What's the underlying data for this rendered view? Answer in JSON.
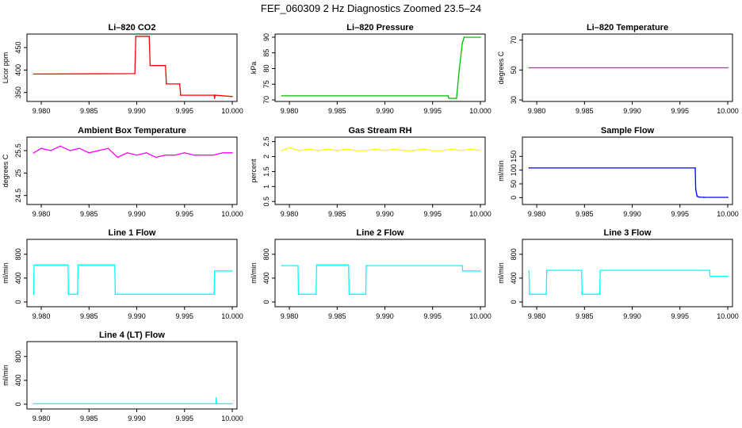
{
  "title": "FEF_060309  2 Hz Diagnostics Zoomed 23.5–24",
  "x_tick_labels": [
    "9.980",
    "9.985",
    "9.990",
    "9.995",
    "10.000"
  ],
  "chart_data": [
    {
      "type": "line",
      "title": "Li–820 CO2",
      "ylabel": "Licor ppm",
      "color": "#ff0000",
      "xlim": [
        9.9785,
        10.0005
      ],
      "ylim": [
        330,
        480
      ],
      "yticks": [
        350,
        400,
        450
      ],
      "x": [
        9.9792,
        9.9898,
        9.9899,
        9.9913,
        9.9914,
        9.993,
        9.9931,
        9.9945,
        9.9946,
        9.9981,
        9.99815,
        9.9982,
        10.0
      ],
      "values": [
        391,
        392,
        475,
        475,
        410,
        410,
        369,
        369,
        344,
        344,
        337,
        344,
        341
      ]
    },
    {
      "type": "line",
      "title": "Li–820 Pressure",
      "ylabel": "kPa",
      "color": "#00c000",
      "xlim": [
        9.9785,
        10.0005
      ],
      "ylim": [
        69.5,
        91
      ],
      "yticks": [
        70,
        75,
        80,
        85,
        90
      ],
      "x": [
        9.9792,
        9.9966,
        9.9967,
        9.9975,
        9.9978,
        9.9981,
        9.9983,
        10.0
      ],
      "values": [
        71.3,
        71.3,
        70.5,
        70.5,
        80,
        88,
        90,
        90
      ]
    },
    {
      "type": "line",
      "title": "Li–820 Temperature",
      "ylabel": "degrees C",
      "color": "#ff00ff",
      "xlim": [
        9.9785,
        10.0005
      ],
      "ylim": [
        29,
        74
      ],
      "yticks": [
        30,
        50,
        70
      ],
      "x": [
        9.9792,
        10.0
      ],
      "values": [
        51.5,
        51.5
      ]
    },
    {
      "type": "line",
      "title": "Ambient Box Temperature",
      "ylabel": "degrees C",
      "color": "#ff00ff",
      "xlim": [
        9.9785,
        10.0005
      ],
      "ylim": [
        24.3,
        25.8
      ],
      "yticks": [
        24.5,
        25,
        25.5
      ],
      "x": [
        9.9792,
        9.98,
        9.981,
        9.982,
        9.983,
        9.984,
        9.985,
        9.986,
        9.987,
        9.988,
        9.989,
        9.99,
        9.991,
        9.992,
        9.993,
        9.994,
        9.995,
        9.996,
        9.997,
        9.998,
        9.999,
        10.0
      ],
      "values": [
        25.45,
        25.55,
        25.5,
        25.6,
        25.5,
        25.55,
        25.45,
        25.5,
        25.55,
        25.35,
        25.45,
        25.4,
        25.45,
        25.35,
        25.4,
        25.4,
        25.45,
        25.4,
        25.4,
        25.4,
        25.45,
        25.45
      ]
    },
    {
      "type": "line",
      "title": "Gas Stream RH",
      "ylabel": "percent",
      "color": "#ffff00",
      "xlim": [
        9.9785,
        10.0005
      ],
      "ylim": [
        0.4,
        2.65
      ],
      "yticks": [
        0.5,
        1,
        1.5,
        2,
        2.5
      ],
      "x": [
        9.9792,
        9.98,
        9.981,
        9.982,
        9.983,
        9.984,
        9.985,
        9.986,
        9.987,
        9.988,
        9.989,
        9.99,
        9.991,
        9.992,
        9.993,
        9.994,
        9.995,
        9.996,
        9.997,
        9.998,
        9.999,
        10.0
      ],
      "values": [
        2.2,
        2.3,
        2.2,
        2.25,
        2.2,
        2.25,
        2.2,
        2.25,
        2.2,
        2.2,
        2.25,
        2.2,
        2.25,
        2.2,
        2.2,
        2.25,
        2.2,
        2.2,
        2.25,
        2.2,
        2.25,
        2.2
      ]
    },
    {
      "type": "line",
      "title": "Sample Flow",
      "ylabel": "ml/min",
      "color": "#0000ff",
      "xlim": [
        9.9785,
        10.0005
      ],
      "ylim": [
        -25,
        220
      ],
      "yticks": [
        0,
        50,
        100,
        150
      ],
      "x": [
        9.9792,
        9.9966,
        9.99665,
        9.9968,
        9.997,
        9.9975,
        10.0
      ],
      "values": [
        108,
        108,
        30,
        5,
        2,
        1,
        1
      ]
    },
    {
      "type": "line",
      "title": "Line 1 Flow",
      "ylabel": "ml/min",
      "color": "#00ffff",
      "xlim": [
        9.9785,
        10.0005
      ],
      "ylim": [
        -80,
        1050
      ],
      "yticks": [
        0,
        400,
        800
      ],
      "x": [
        9.9792,
        9.97925,
        9.9828,
        9.98285,
        9.9838,
        9.98385,
        9.9877,
        9.98775,
        9.9981,
        9.99815,
        10.0
      ],
      "values": [
        130,
        620,
        620,
        130,
        130,
        620,
        620,
        130,
        130,
        520,
        520
      ]
    },
    {
      "type": "line",
      "title": "Line 2 Flow",
      "ylabel": "ml/min",
      "color": "#00ffff",
      "xlim": [
        9.9785,
        10.0005
      ],
      "ylim": [
        -80,
        1050
      ],
      "yticks": [
        0,
        400,
        800
      ],
      "x": [
        9.9792,
        9.9809,
        9.98095,
        9.9828,
        9.98285,
        9.9862,
        9.98625,
        9.988,
        9.98805,
        9.9981,
        9.99815,
        10.0
      ],
      "values": [
        610,
        610,
        130,
        130,
        620,
        620,
        130,
        130,
        610,
        610,
        520,
        520
      ]
    },
    {
      "type": "line",
      "title": "Line 3 Flow",
      "ylabel": "ml/min",
      "color": "#00ffff",
      "xlim": [
        9.9785,
        10.0005
      ],
      "ylim": [
        -80,
        1050
      ],
      "yticks": [
        0,
        400,
        800
      ],
      "x": [
        9.9792,
        9.97925,
        9.981,
        9.98105,
        9.9847,
        9.98475,
        9.9866,
        9.98665,
        9.9981,
        9.99815,
        10.0
      ],
      "values": [
        520,
        130,
        130,
        530,
        530,
        130,
        130,
        530,
        530,
        430,
        430
      ]
    },
    {
      "type": "line",
      "title": "Line 4 (LT) Flow",
      "ylabel": "ml/min",
      "color": "#00ffff",
      "xlim": [
        9.9785,
        10.0005
      ],
      "ylim": [
        -80,
        1050
      ],
      "yticks": [
        0,
        400,
        800
      ],
      "x": [
        9.9792,
        9.9983,
        9.99832,
        9.99836,
        10.0
      ],
      "values": [
        8,
        8,
        110,
        8,
        8
      ]
    }
  ]
}
